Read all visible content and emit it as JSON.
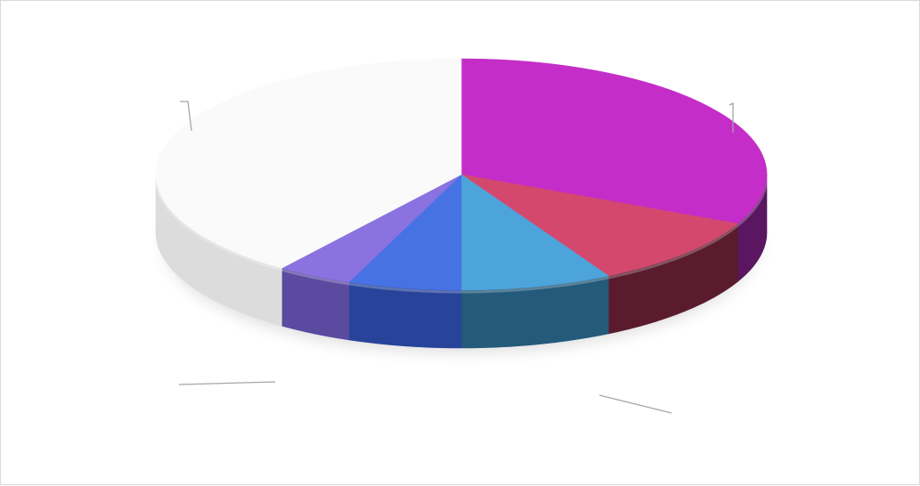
{
  "chart_data": {
    "type": "pie",
    "style": "3d-pie",
    "title": "",
    "data_labels": "none",
    "legend": "none",
    "slices": [
      {
        "value": 32,
        "color": "#c42dc8",
        "side_color": "#5a1660"
      },
      {
        "value": 10,
        "color": "#d4486e",
        "side_color": "#5a1b2e"
      },
      {
        "value": 8,
        "color": "#4da4da",
        "side_color": "#245a7a"
      },
      {
        "value": 6,
        "color": "#4772e3",
        "side_color": "#28449a"
      },
      {
        "value": 4,
        "color": "#8a72e0",
        "side_color": "#5a4aa0"
      },
      {
        "value": 40,
        "color": "#fafafa",
        "side_color": "#dcdcdc"
      }
    ],
    "leader_line_color": "#a6a6a6",
    "frame_border_color": "#d9d9d9"
  }
}
